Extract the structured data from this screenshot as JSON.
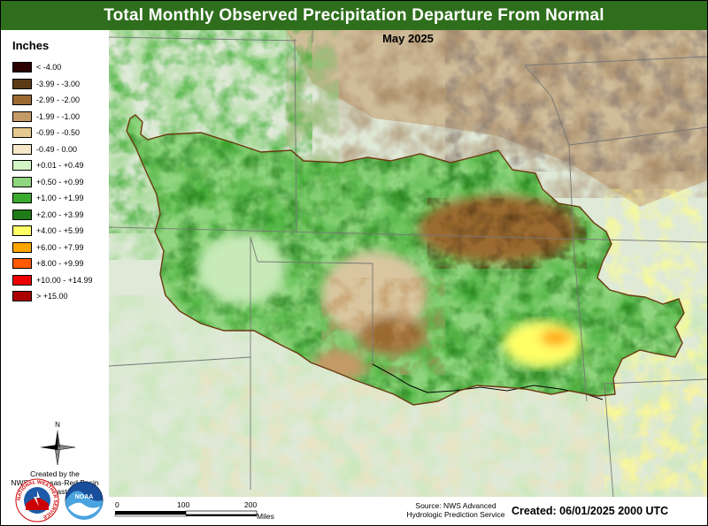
{
  "title": "Total Monthly Observed Precipitation Departure From Normal",
  "subtitle": "May 2025",
  "legend": {
    "title": "Inches",
    "items": [
      {
        "label": "< -4.00",
        "color": "#2b0000"
      },
      {
        "label": "-3.99 - -3.00",
        "color": "#5a3a15"
      },
      {
        "label": "-2.99 - -2.00",
        "color": "#9a6a32"
      },
      {
        "label": "-1.99 - -1.00",
        "color": "#c49a66"
      },
      {
        "label": "-0.99 - -0.50",
        "color": "#e6c98e"
      },
      {
        "label": "-0.49 - 0.00",
        "color": "#f5e7c8"
      },
      {
        "label": "+0.01 - +0.49",
        "color": "#d3f4c5"
      },
      {
        "label": "+0.50 - +0.99",
        "color": "#8fd47e"
      },
      {
        "label": "+1.00 - +1.99",
        "color": "#3aab2e"
      },
      {
        "label": "+2.00 - +3.99",
        "color": "#1f7b17"
      },
      {
        "label": "+4.00 - +5.99",
        "color": "#ffff66"
      },
      {
        "label": "+6.00 - +7.99",
        "color": "#ffa500"
      },
      {
        "label": "+8.00 - +9.99",
        "color": "#ff5a00"
      },
      {
        "label": "+10.00 - +14.99",
        "color": "#ee0000"
      },
      {
        "label": "> +15.00",
        "color": "#aa0000"
      }
    ]
  },
  "north_label": "N",
  "credit": {
    "line1": "Created by the",
    "line2": "NWS Arkansas-Red Basin",
    "line3": "River Forecast Center"
  },
  "logos": {
    "nws_ring_text": "NATIONAL WEATHER SERVICE",
    "noaa_text": "NOAA"
  },
  "scale": {
    "ticks": [
      "0",
      "100",
      "200"
    ],
    "unit": "Miles"
  },
  "source": {
    "line1": "Source: NWS Advanced",
    "line2": "Hydrologic Prediction Service"
  },
  "created": "Created: 06/01/2025 2000 UTC"
}
